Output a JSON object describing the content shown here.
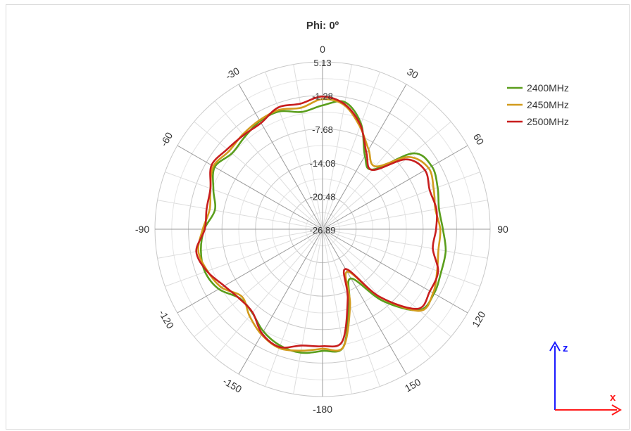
{
  "chart_data": {
    "type": "polar-line",
    "title": "Phi: 0º",
    "angle_ticks": [
      "0",
      "30",
      "60",
      "90",
      "120",
      "150",
      "-180",
      "-150",
      "-120",
      "-90",
      "-60",
      "-30"
    ],
    "angle_tick_values": [
      0,
      30,
      60,
      90,
      120,
      150,
      180,
      210,
      240,
      270,
      300,
      330
    ],
    "radial_ticks": [
      "5.13",
      "-1.28",
      "-7.68",
      "-14.08",
      "-20.48",
      "-26.89"
    ],
    "radial_tick_values": [
      5.13,
      -1.28,
      -7.68,
      -14.08,
      -20.48,
      -26.89
    ],
    "rlim": [
      -26.89,
      5.13
    ],
    "grid": true,
    "legend_position": "top-right",
    "series": [
      {
        "name": "2400MHz",
        "color": "#5a9e1c",
        "theta": [
          -180,
          -170,
          -160,
          -150,
          -140,
          -130,
          -120,
          -110,
          -100,
          -90,
          -80,
          -70,
          -60,
          -50,
          -40,
          -30,
          -20,
          -10,
          0,
          10,
          20,
          30,
          40,
          50,
          60,
          70,
          80,
          90,
          100,
          110,
          120,
          130,
          140,
          150,
          160,
          170,
          180
        ],
        "r": [
          -3.6,
          -2.9,
          -3.2,
          -4.3,
          -6.0,
          -6.3,
          -4.0,
          -3.0,
          -3.3,
          -4.3,
          -6.0,
          -4.7,
          -3.1,
          -4.3,
          -3.8,
          -3.0,
          -2.9,
          -4.1,
          -3.2,
          -2.2,
          -5.4,
          -10.7,
          -12.0,
          -4.3,
          -2.8,
          -3.5,
          -4.3,
          -3.9,
          -3.0,
          -2.8,
          -2.3,
          -2.8,
          -9.0,
          -16.0,
          -12.0,
          -4.0,
          -3.6
        ]
      },
      {
        "name": "2450MHz",
        "color": "#d29b1c",
        "theta": [
          -180,
          -170,
          -160,
          -150,
          -140,
          -130,
          -120,
          -110,
          -100,
          -90,
          -80,
          -70,
          -60,
          -50,
          -40,
          -30,
          -20,
          -10,
          0,
          10,
          20,
          30,
          40,
          50,
          60,
          70,
          80,
          90,
          100,
          110,
          120,
          130,
          140,
          150,
          160,
          170,
          180
        ],
        "r": [
          -4.0,
          -3.3,
          -2.7,
          -3.6,
          -5.2,
          -6.8,
          -4.6,
          -3.5,
          -2.8,
          -4.0,
          -5.0,
          -4.1,
          -2.8,
          -3.6,
          -3.2,
          -2.8,
          -2.6,
          -3.3,
          -2.0,
          -2.8,
          -6.0,
          -9.3,
          -11.2,
          -5.4,
          -3.5,
          -4.3,
          -5.0,
          -4.4,
          -4.4,
          -3.6,
          -2.5,
          -2.6,
          -10.0,
          -17.5,
          -11.5,
          -4.0,
          -4.0
        ]
      },
      {
        "name": "2500MHz",
        "color": "#c81e1e",
        "theta": [
          -180,
          -170,
          -160,
          -150,
          -140,
          -130,
          -120,
          -110,
          -100,
          -90,
          -80,
          -70,
          -60,
          -50,
          -40,
          -30,
          -20,
          -10,
          0,
          10,
          20,
          30,
          40,
          50,
          60,
          70,
          80,
          90,
          100,
          110,
          120,
          130,
          140,
          150,
          160,
          170,
          180
        ],
        "r": [
          -4.5,
          -4.3,
          -2.9,
          -3.8,
          -6.1,
          -6.2,
          -5.2,
          -3.4,
          -2.4,
          -4.4,
          -4.4,
          -4.1,
          -2.4,
          -3.1,
          -3.4,
          -3.4,
          -2.1,
          -2.5,
          -1.5,
          -2.6,
          -5.7,
          -10.1,
          -12.1,
          -6.1,
          -4.3,
          -5.1,
          -4.8,
          -5.2,
          -5.5,
          -3.4,
          -3.2,
          -3.2,
          -10.1,
          -18.1,
          -12.8,
          -5.1,
          -4.5
        ]
      }
    ]
  },
  "axes_indicator": {
    "z_label": "z",
    "x_label": "x",
    "z_color": "#1a1aff",
    "x_color": "#ff1a1a"
  }
}
